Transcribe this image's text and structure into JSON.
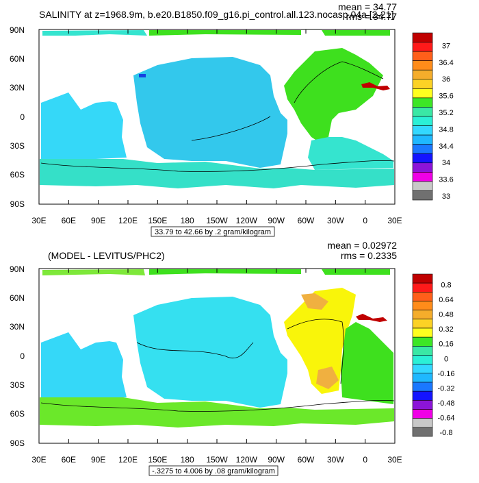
{
  "colors": {
    "ocean": "#1fe6ff",
    "pacific": "#35d2f5",
    "teal": "#2ee6cc",
    "green": "#3ee01e",
    "lightgreen": "#6be82a",
    "yellow": "#f9f50a",
    "orange": "#f0a030",
    "red": "#c00000",
    "blue": "#1540e0",
    "contour": "#000000"
  },
  "chart_data": [
    {
      "type": "heatmap",
      "title": "SALINITY at z=1968.9m, b.e20.B1850.f09_g16.pi_control.all.123.nocasp.04a [2-21]",
      "stats": {
        "mean": "mean = 34.77",
        "rms": "rms = 34.77"
      },
      "subtitle_box": "33.79 to 42.66 by .2 gram/kilogram",
      "x_ticks": [
        "30E",
        "60E",
        "90E",
        "120E",
        "150E",
        "180",
        "150W",
        "120W",
        "90W",
        "60W",
        "30W",
        "0",
        "30E"
      ],
      "y_ticks": [
        "90N",
        "60N",
        "30N",
        "0",
        "30S",
        "60S",
        "90S"
      ],
      "ylim": [
        -90,
        90
      ],
      "colorbar": {
        "colors": [
          "#c00000",
          "#ff1a1a",
          "#ff5f1a",
          "#ff8c1a",
          "#f5ad2b",
          "#fcd225",
          "#ffff1f",
          "#3de626",
          "#3ae8a5",
          "#2bf0d6",
          "#33d8ff",
          "#1fb8ff",
          "#1a78ff",
          "#1414ff",
          "#8c14d8",
          "#f000e6",
          "#c8c8c8",
          "#707070"
        ],
        "labels": [
          "37",
          "36.4",
          "36",
          "35.6",
          "35.2",
          "34.8",
          "34.4",
          "34",
          "33.6",
          "33"
        ]
      }
    },
    {
      "type": "heatmap",
      "title": "(MODEL - LEVITUS/PHC2)",
      "stats": {
        "mean": "mean = 0.02972",
        "rms": "rms = 0.2335"
      },
      "subtitle_box": "-.3275 to 4.006 by .08 gram/kilogram",
      "x_ticks": [
        "30E",
        "60E",
        "90E",
        "120E",
        "150E",
        "180",
        "150W",
        "120W",
        "90W",
        "60W",
        "30W",
        "0",
        "30E"
      ],
      "y_ticks": [
        "90N",
        "60N",
        "30N",
        "0",
        "30S",
        "60S",
        "90S"
      ],
      "ylim": [
        -90,
        90
      ],
      "colorbar": {
        "colors": [
          "#c00000",
          "#ff1a1a",
          "#ff5f1a",
          "#ff8c1a",
          "#f5ad2b",
          "#fcd225",
          "#ffff1f",
          "#3de626",
          "#3ae8a5",
          "#2bf0d6",
          "#33d8ff",
          "#1fb8ff",
          "#1a78ff",
          "#1414ff",
          "#8c14d8",
          "#f000e6",
          "#c8c8c8",
          "#707070"
        ],
        "labels": [
          "0.8",
          "0.64",
          "0.48",
          "0.32",
          "0.16",
          "0",
          "-0.16",
          "-0.32",
          "-0.48",
          "-0.64",
          "-0.8"
        ]
      }
    }
  ]
}
